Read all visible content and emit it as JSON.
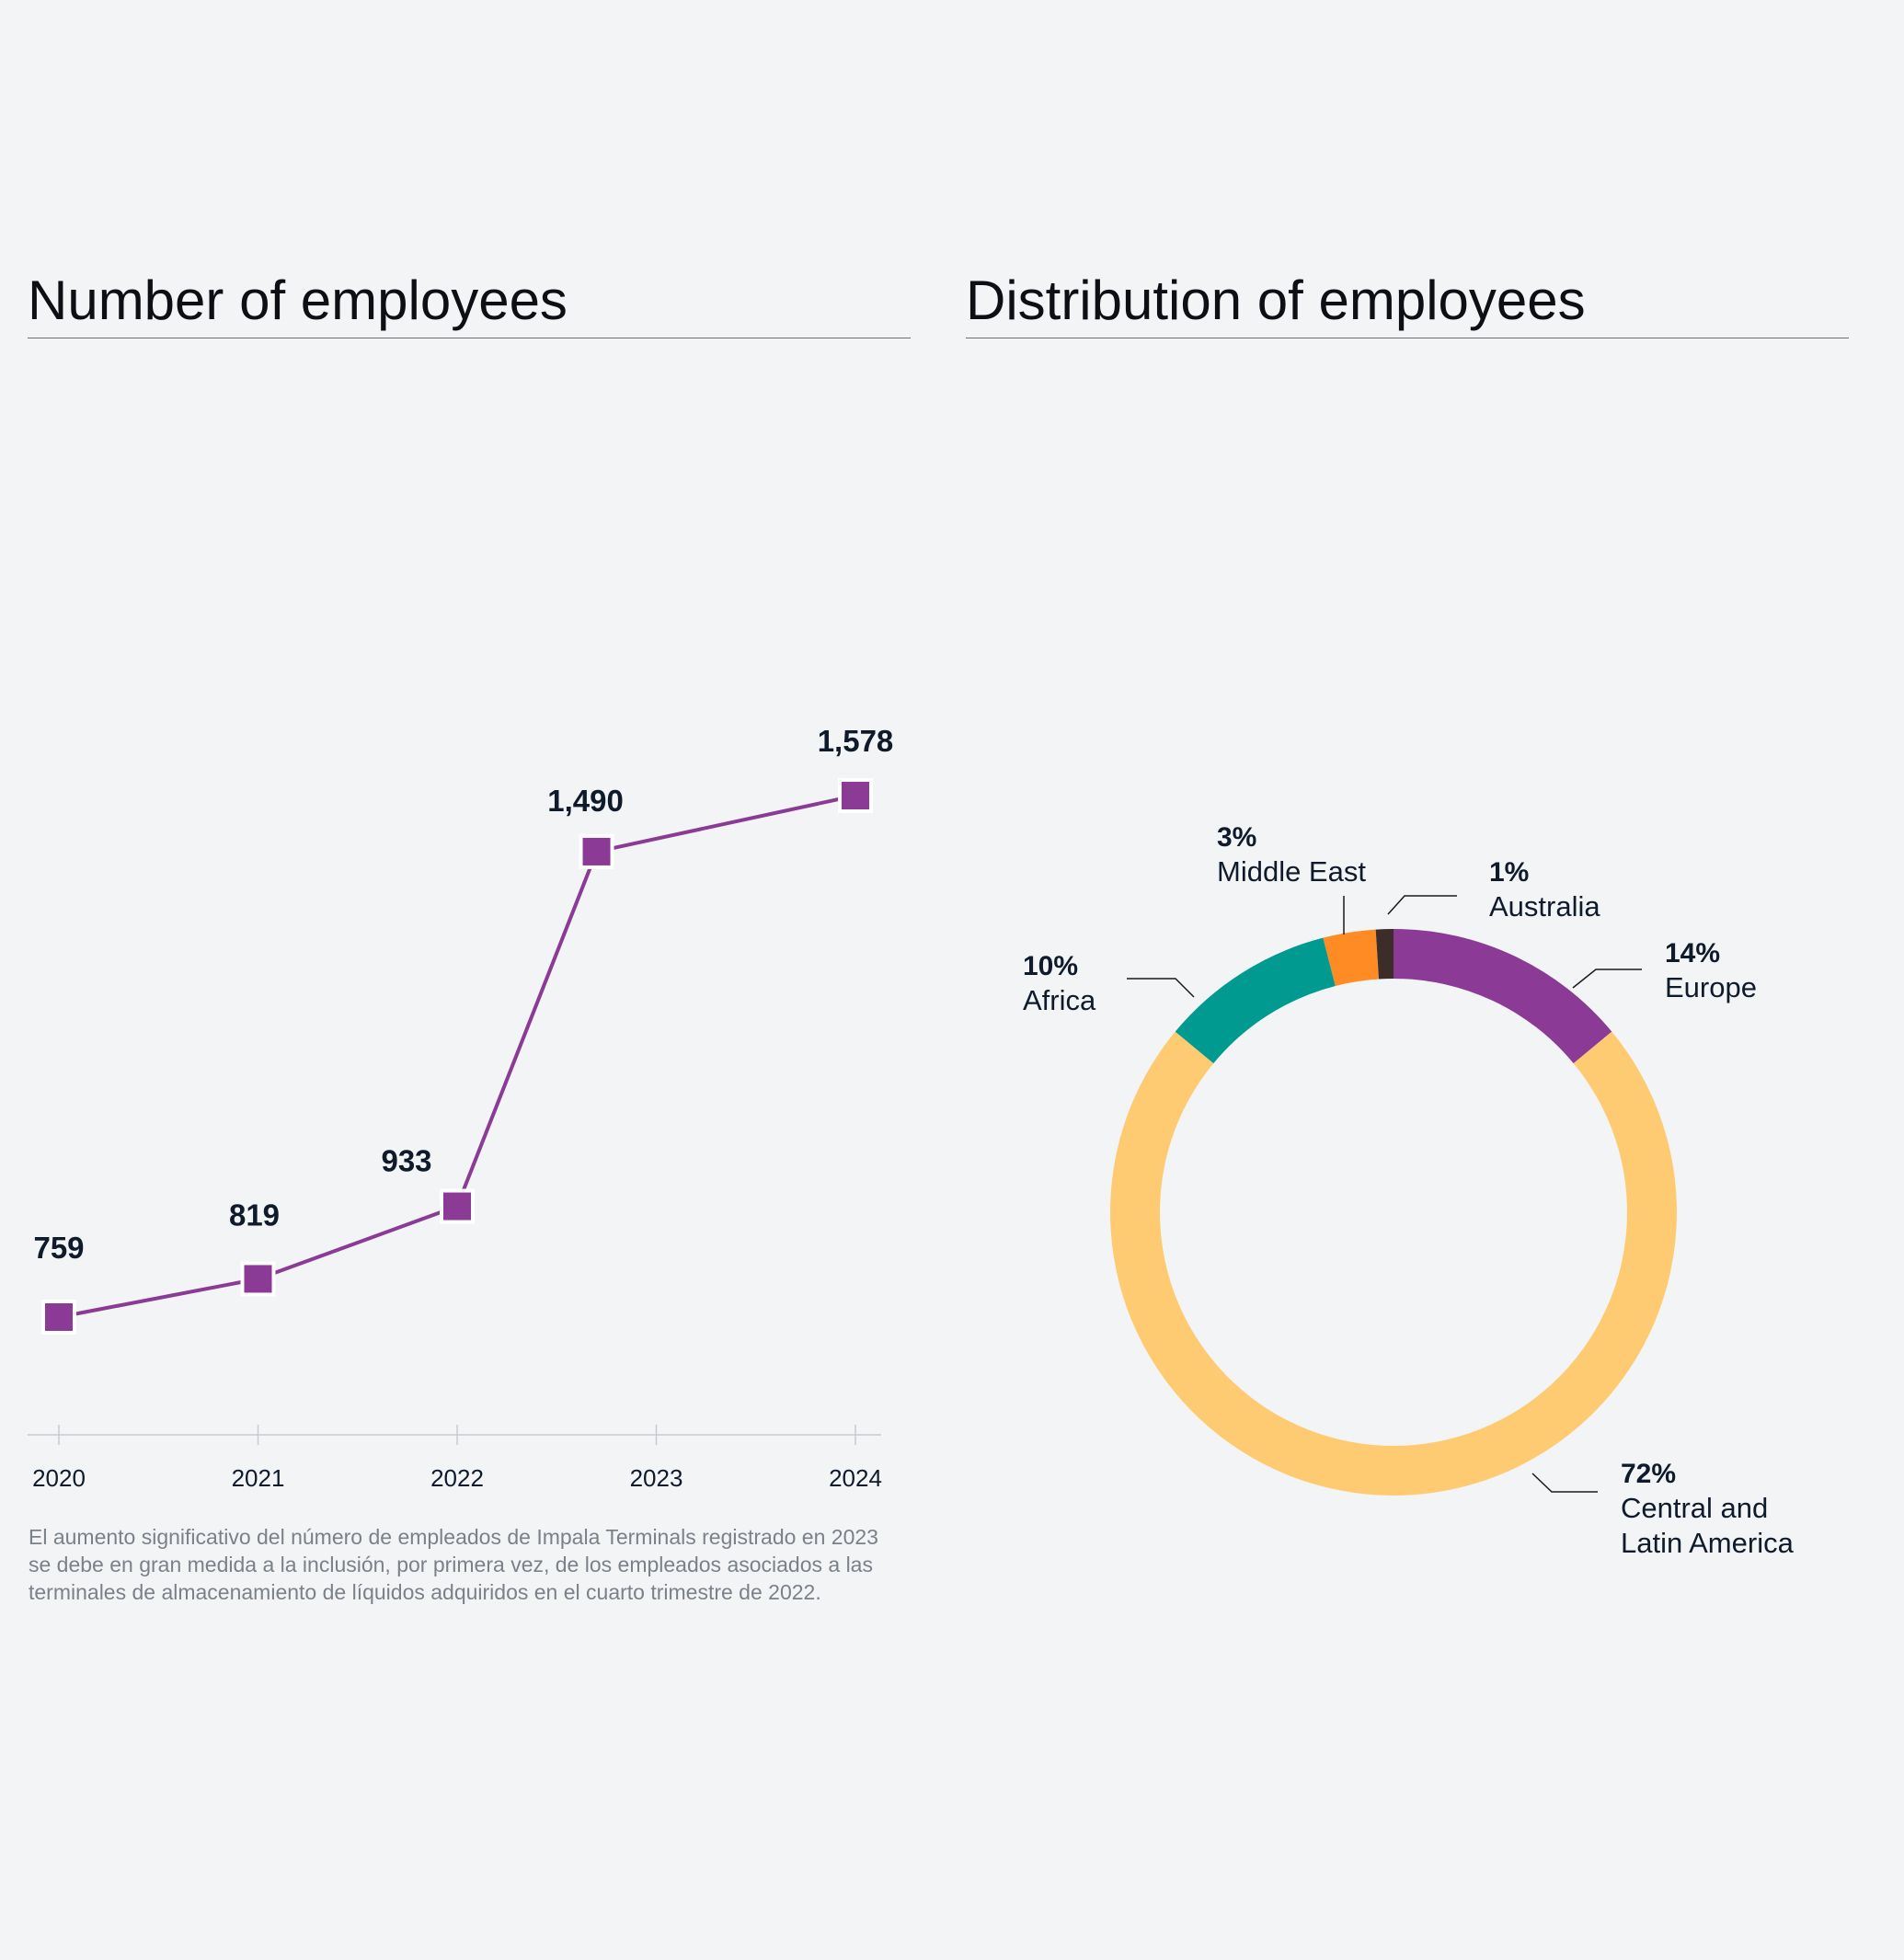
{
  "left_panel": {
    "title": "Number of employees",
    "note": "El aumento significativo del número de empleados de Impala Terminals registrado en 2023 se debe en gran medida a la inclusión, por primera vez, de los empleados asociados a las terminales de almacenamiento de líquidos adquiridos en el cuarto trimestre de 2022."
  },
  "right_panel": {
    "title": "Distribution of employees"
  },
  "colors": {
    "background": "#f2f4f6",
    "line": "#8b3a96",
    "marker": "#8b3a96",
    "text_dark": "#0f1b2b",
    "axis": "#c8cbd0"
  },
  "chart_data": [
    {
      "type": "line",
      "title": "Number of employees",
      "categories": [
        "2020",
        "2021",
        "2022",
        "2023",
        "2024"
      ],
      "x": [
        0,
        1,
        2,
        2.7,
        4
      ],
      "values": [
        759,
        819,
        933,
        1490,
        1578
      ],
      "labels": [
        "759",
        "819",
        "933",
        "1,490",
        "1,578"
      ],
      "xlabel": "",
      "ylabel": "",
      "grid": false
    },
    {
      "type": "pie",
      "title": "Distribution of employees",
      "donut": true,
      "slices": [
        {
          "pct": "14%",
          "value": 14,
          "name": "Europe",
          "color": "#8b3a96"
        },
        {
          "pct": "72%",
          "value": 72,
          "name": "Central and Latin America",
          "name_lines": [
            "Central and",
            "Latin America"
          ],
          "color": "#ffcb72"
        },
        {
          "pct": "10%",
          "value": 10,
          "name": "Africa",
          "color": "#009a91"
        },
        {
          "pct": "3%",
          "value": 3,
          "name": "Middle East",
          "color": "#ff8b24"
        },
        {
          "pct": "1%",
          "value": 1,
          "name": "Australia",
          "color": "#3d2d2a"
        }
      ]
    }
  ]
}
